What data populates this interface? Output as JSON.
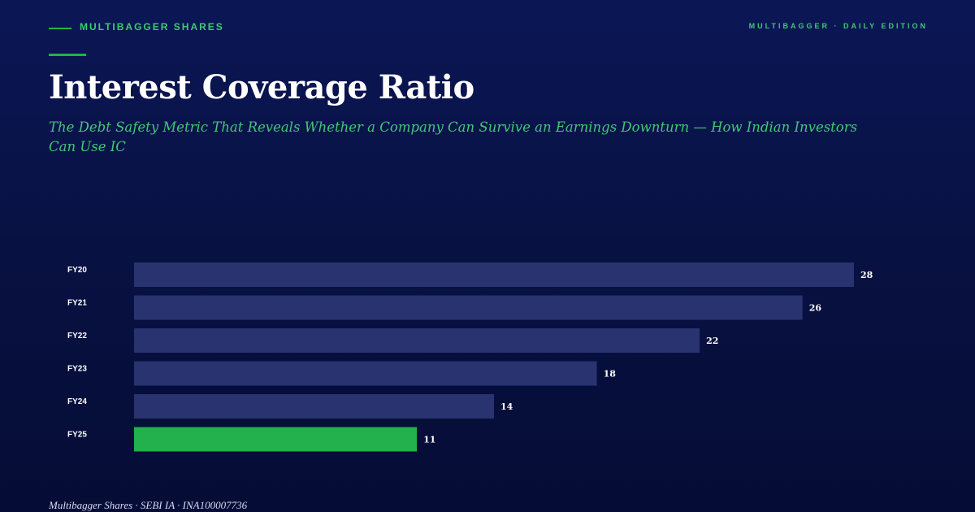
{
  "header": {
    "brand": "MULTIBAGGER SHARES",
    "edition": "MULTIBAGGER · DAILY EDITION"
  },
  "title": "Interest Coverage Ratio",
  "subtitle": "The Debt Safety Metric That Reveals Whether a Company Can Survive an Earnings Downturn — How Indian Investors Can Use IC",
  "footer": "Multibagger Shares · SEBI IA · INA100007736",
  "colors": {
    "bar_default": "#283370",
    "bar_highlight": "#22b14c",
    "accent": "#43c777",
    "background": "#081243"
  },
  "chart_data": {
    "type": "bar",
    "orientation": "horizontal",
    "categories": [
      "FY20",
      "FY21",
      "FY22",
      "FY23",
      "FY24",
      "FY25"
    ],
    "values": [
      28,
      26,
      22,
      18,
      14,
      11
    ],
    "data_labels": [
      "28",
      "26",
      "22",
      "18",
      "14",
      "11"
    ],
    "highlight_index": 5,
    "xlim": [
      0,
      28
    ],
    "grid": false,
    "title": "",
    "xlabel": "",
    "ylabel": ""
  }
}
